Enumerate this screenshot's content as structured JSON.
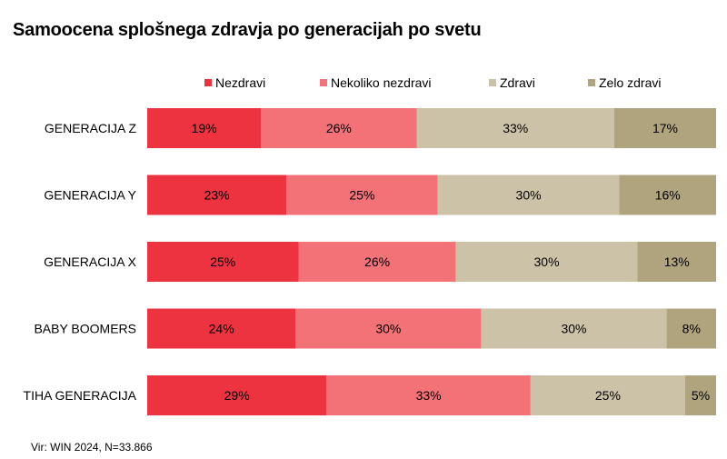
{
  "title": "Samoocena splošnega zdravja po generacijah po svetu",
  "source": "Vir: WIN 2024, N=33.866",
  "chart_data": {
    "type": "bar",
    "orientation": "horizontal",
    "stacked": true,
    "legend_position": "top",
    "categories": [
      "GENERACIJA Z",
      "GENERACIJA Y",
      "GENERACIJA X",
      "BABY BOOMERS",
      "TIHA GENERACIJA"
    ],
    "series": [
      {
        "name": "Nezdravi",
        "color": "#EE3340",
        "values": [
          19,
          23,
          25,
          24,
          29
        ],
        "labels": [
          "19%",
          "23%",
          "25%",
          "24%",
          "29%"
        ]
      },
      {
        "name": "Nekoliko nezdravi",
        "color": "#F27278",
        "values": [
          26,
          25,
          26,
          30,
          33
        ],
        "labels": [
          "26%",
          "25%",
          "26%",
          "30%",
          "33%"
        ]
      },
      {
        "name": "Zdravi",
        "color": "#CBC2A7",
        "values": [
          33,
          30,
          30,
          30,
          25
        ],
        "labels": [
          "33%",
          "30%",
          "30%",
          "30%",
          "25%"
        ]
      },
      {
        "name": "Zelo zdravi",
        "color": "#B0A47E",
        "values": [
          17,
          16,
          13,
          8,
          5
        ],
        "labels": [
          "17%",
          "16%",
          "13%",
          "8%",
          "5%"
        ]
      }
    ]
  }
}
